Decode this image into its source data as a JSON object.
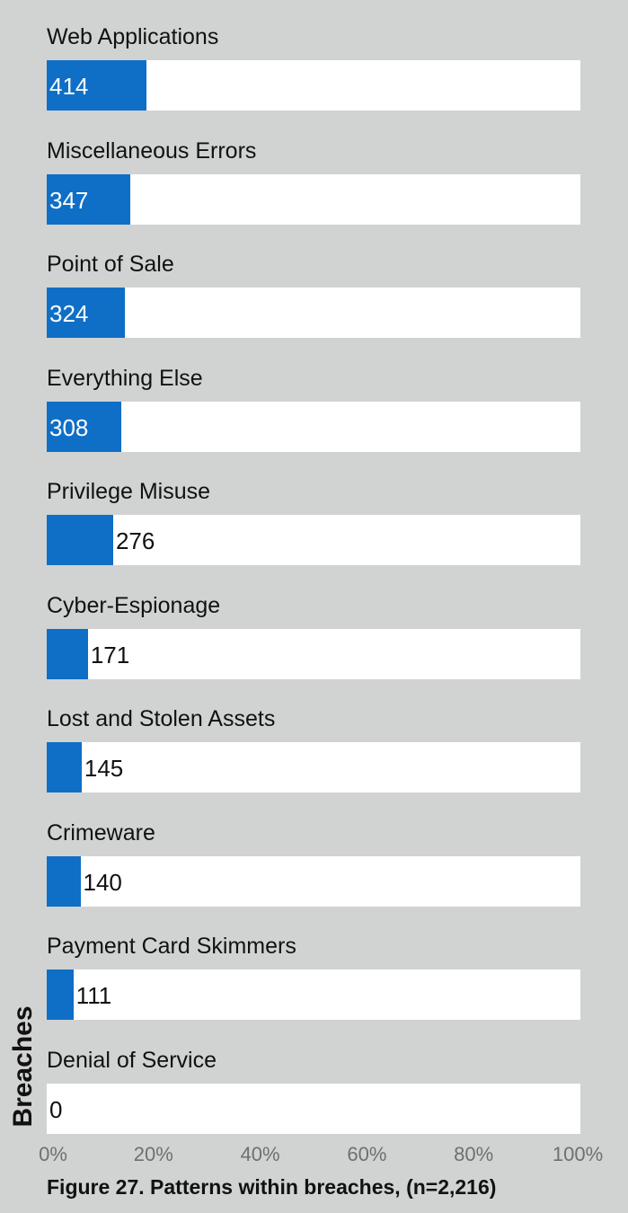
{
  "chart_data": {
    "type": "bar",
    "orientation": "horizontal",
    "categories": [
      "Web Applications",
      "Miscellaneous Errors",
      "Point of Sale",
      "Everything Else",
      "Privilege Misuse",
      "Cyber-Espionage",
      "Lost and Stolen Assets",
      "Crimeware",
      "Payment Card Skimmers",
      "Denial of Service"
    ],
    "values": [
      414,
      347,
      324,
      308,
      276,
      171,
      145,
      140,
      111,
      0
    ],
    "total": 2216,
    "xlabel": "",
    "ylabel": "Breaches",
    "xlim": [
      0,
      100
    ],
    "x_ticks": [
      "0%",
      "20%",
      "40%",
      "60%",
      "80%",
      "100%"
    ],
    "caption": "Figure 27.  Patterns within breaches, (n=2,216)",
    "colors": {
      "background": "#d1d3d2",
      "bar": "#0f6fc6",
      "track": "#ffffff",
      "label_inside": "#ffffff",
      "label_outside": "#111111",
      "tick": "#6f6f6f"
    }
  }
}
